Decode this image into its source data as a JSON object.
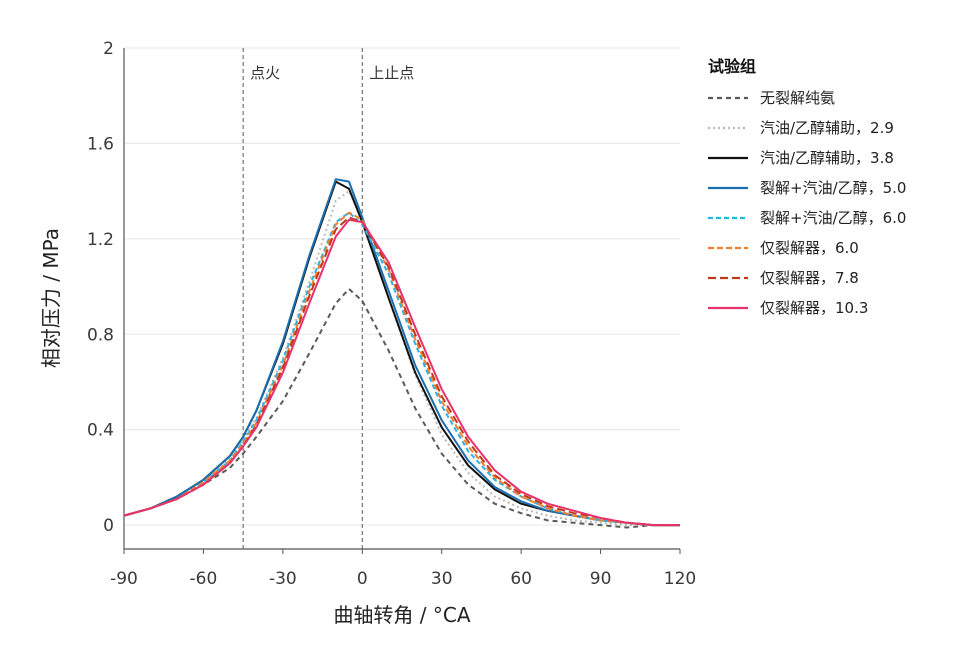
{
  "chart_data": {
    "type": "line",
    "xlabel": "曲轴转角 / °CA",
    "ylabel": "相对压力 / MPa",
    "xlim": [
      -90,
      120
    ],
    "ylim": [
      -0.1,
      2.0
    ],
    "xticks": [
      -90,
      -60,
      -30,
      0,
      30,
      60,
      90,
      120
    ],
    "yticks": [
      0,
      0.4,
      0.8,
      1.2,
      1.6,
      2
    ],
    "xtick_labels": [
      "-90",
      "-60",
      "-30",
      "0",
      "30",
      "60",
      "90",
      "120"
    ],
    "ytick_labels": [
      "0",
      "0.4",
      "0.8",
      "1.2",
      "1.6",
      "2"
    ],
    "grid": "horizontal",
    "legend": {
      "title": "试验组",
      "placement": "right"
    },
    "annotations": [
      {
        "text": "点火",
        "x": -45
      },
      {
        "text": "上止点",
        "x": 0
      }
    ],
    "series": [
      {
        "name": "无裂解纯氨",
        "color": "#5a5a5a",
        "dash": "5,4",
        "x": [
          -90,
          -80,
          -70,
          -60,
          -50,
          -45,
          -40,
          -30,
          -20,
          -10,
          -5,
          0,
          10,
          20,
          30,
          40,
          50,
          60,
          70,
          80,
          90,
          100,
          110,
          120
        ],
        "y": [
          0.04,
          0.07,
          0.11,
          0.17,
          0.24,
          0.3,
          0.37,
          0.52,
          0.72,
          0.93,
          0.99,
          0.94,
          0.73,
          0.49,
          0.3,
          0.17,
          0.09,
          0.05,
          0.02,
          0.01,
          0.0,
          -0.01,
          0.0,
          0.0
        ]
      },
      {
        "name": "汽油/乙醇辅助，2.9",
        "color": "#b9b9b9",
        "dash": "2,3",
        "x": [
          -90,
          -80,
          -70,
          -60,
          -50,
          -45,
          -40,
          -30,
          -20,
          -10,
          -5,
          0,
          10,
          20,
          30,
          40,
          50,
          60,
          70,
          80,
          90,
          100,
          110,
          120
        ],
        "y": [
          0.04,
          0.07,
          0.12,
          0.19,
          0.28,
          0.36,
          0.45,
          0.7,
          1.02,
          1.36,
          1.4,
          1.28,
          0.95,
          0.63,
          0.38,
          0.22,
          0.12,
          0.07,
          0.04,
          0.02,
          0.01,
          0.0,
          0.0,
          0.0
        ]
      },
      {
        "name": "汽油/乙醇辅助，3.8",
        "color": "#111111",
        "dash": "",
        "x": [
          -90,
          -80,
          -70,
          -60,
          -50,
          -45,
          -40,
          -30,
          -20,
          -10,
          -5,
          0,
          10,
          20,
          30,
          40,
          50,
          60,
          70,
          80,
          90,
          100,
          110,
          120
        ],
        "y": [
          0.04,
          0.07,
          0.12,
          0.19,
          0.29,
          0.37,
          0.48,
          0.76,
          1.12,
          1.44,
          1.41,
          1.27,
          0.95,
          0.64,
          0.41,
          0.25,
          0.15,
          0.09,
          0.06,
          0.04,
          0.02,
          0.01,
          0.0,
          0.0
        ]
      },
      {
        "name": "裂解+汽油/乙醇，5.0",
        "color": "#1a6fb0",
        "dash": "",
        "x": [
          -90,
          -80,
          -70,
          -60,
          -50,
          -45,
          -40,
          -30,
          -20,
          -10,
          -5,
          0,
          10,
          20,
          30,
          40,
          50,
          60,
          70,
          80,
          90,
          100,
          110,
          120
        ],
        "y": [
          0.04,
          0.07,
          0.12,
          0.19,
          0.29,
          0.37,
          0.48,
          0.77,
          1.13,
          1.45,
          1.44,
          1.29,
          0.98,
          0.67,
          0.44,
          0.27,
          0.16,
          0.1,
          0.06,
          0.04,
          0.02,
          0.01,
          0.0,
          0.0
        ]
      },
      {
        "name": "裂解+汽油/乙醇，6.0",
        "color": "#2ab4e6",
        "dash": "5,3",
        "x": [
          -90,
          -80,
          -70,
          -60,
          -50,
          -45,
          -40,
          -30,
          -20,
          -10,
          -5,
          0,
          10,
          20,
          30,
          40,
          50,
          60,
          70,
          80,
          90,
          100,
          110,
          120
        ],
        "y": [
          0.04,
          0.07,
          0.11,
          0.18,
          0.27,
          0.35,
          0.44,
          0.69,
          1.0,
          1.27,
          1.31,
          1.26,
          1.05,
          0.76,
          0.5,
          0.31,
          0.19,
          0.12,
          0.07,
          0.04,
          0.02,
          0.01,
          0.0,
          0.0
        ]
      },
      {
        "name": "仅裂解器，6.0",
        "color": "#f08030",
        "dash": "6,3",
        "x": [
          -90,
          -80,
          -70,
          -60,
          -50,
          -45,
          -40,
          -30,
          -20,
          -10,
          -5,
          0,
          10,
          20,
          30,
          40,
          50,
          60,
          70,
          80,
          90,
          100,
          110,
          120
        ],
        "y": [
          0.04,
          0.07,
          0.11,
          0.18,
          0.27,
          0.34,
          0.43,
          0.67,
          0.98,
          1.26,
          1.31,
          1.28,
          1.07,
          0.78,
          0.52,
          0.33,
          0.2,
          0.12,
          0.07,
          0.04,
          0.02,
          0.01,
          0.0,
          0.0
        ]
      },
      {
        "name": "仅裂解器，7.8",
        "color": "#c0391b",
        "dash": "8,4",
        "x": [
          -90,
          -80,
          -70,
          -60,
          -50,
          -45,
          -40,
          -30,
          -20,
          -10,
          -5,
          0,
          10,
          20,
          30,
          40,
          50,
          60,
          70,
          80,
          90,
          100,
          110,
          120
        ],
        "y": [
          0.04,
          0.07,
          0.11,
          0.17,
          0.26,
          0.33,
          0.42,
          0.66,
          0.96,
          1.24,
          1.29,
          1.27,
          1.08,
          0.8,
          0.54,
          0.35,
          0.21,
          0.13,
          0.08,
          0.05,
          0.03,
          0.01,
          0.0,
          0.0
        ]
      },
      {
        "name": "仅裂解器，10.3",
        "color": "#e8336a",
        "dash": "",
        "x": [
          -90,
          -80,
          -70,
          -60,
          -50,
          -45,
          -40,
          -30,
          -20,
          -10,
          -5,
          0,
          10,
          20,
          30,
          40,
          50,
          60,
          70,
          80,
          90,
          100,
          110,
          120
        ],
        "y": [
          0.04,
          0.07,
          0.11,
          0.17,
          0.26,
          0.33,
          0.41,
          0.64,
          0.93,
          1.21,
          1.28,
          1.27,
          1.1,
          0.83,
          0.57,
          0.37,
          0.23,
          0.14,
          0.09,
          0.06,
          0.03,
          0.01,
          0.0,
          0.0
        ]
      }
    ]
  }
}
